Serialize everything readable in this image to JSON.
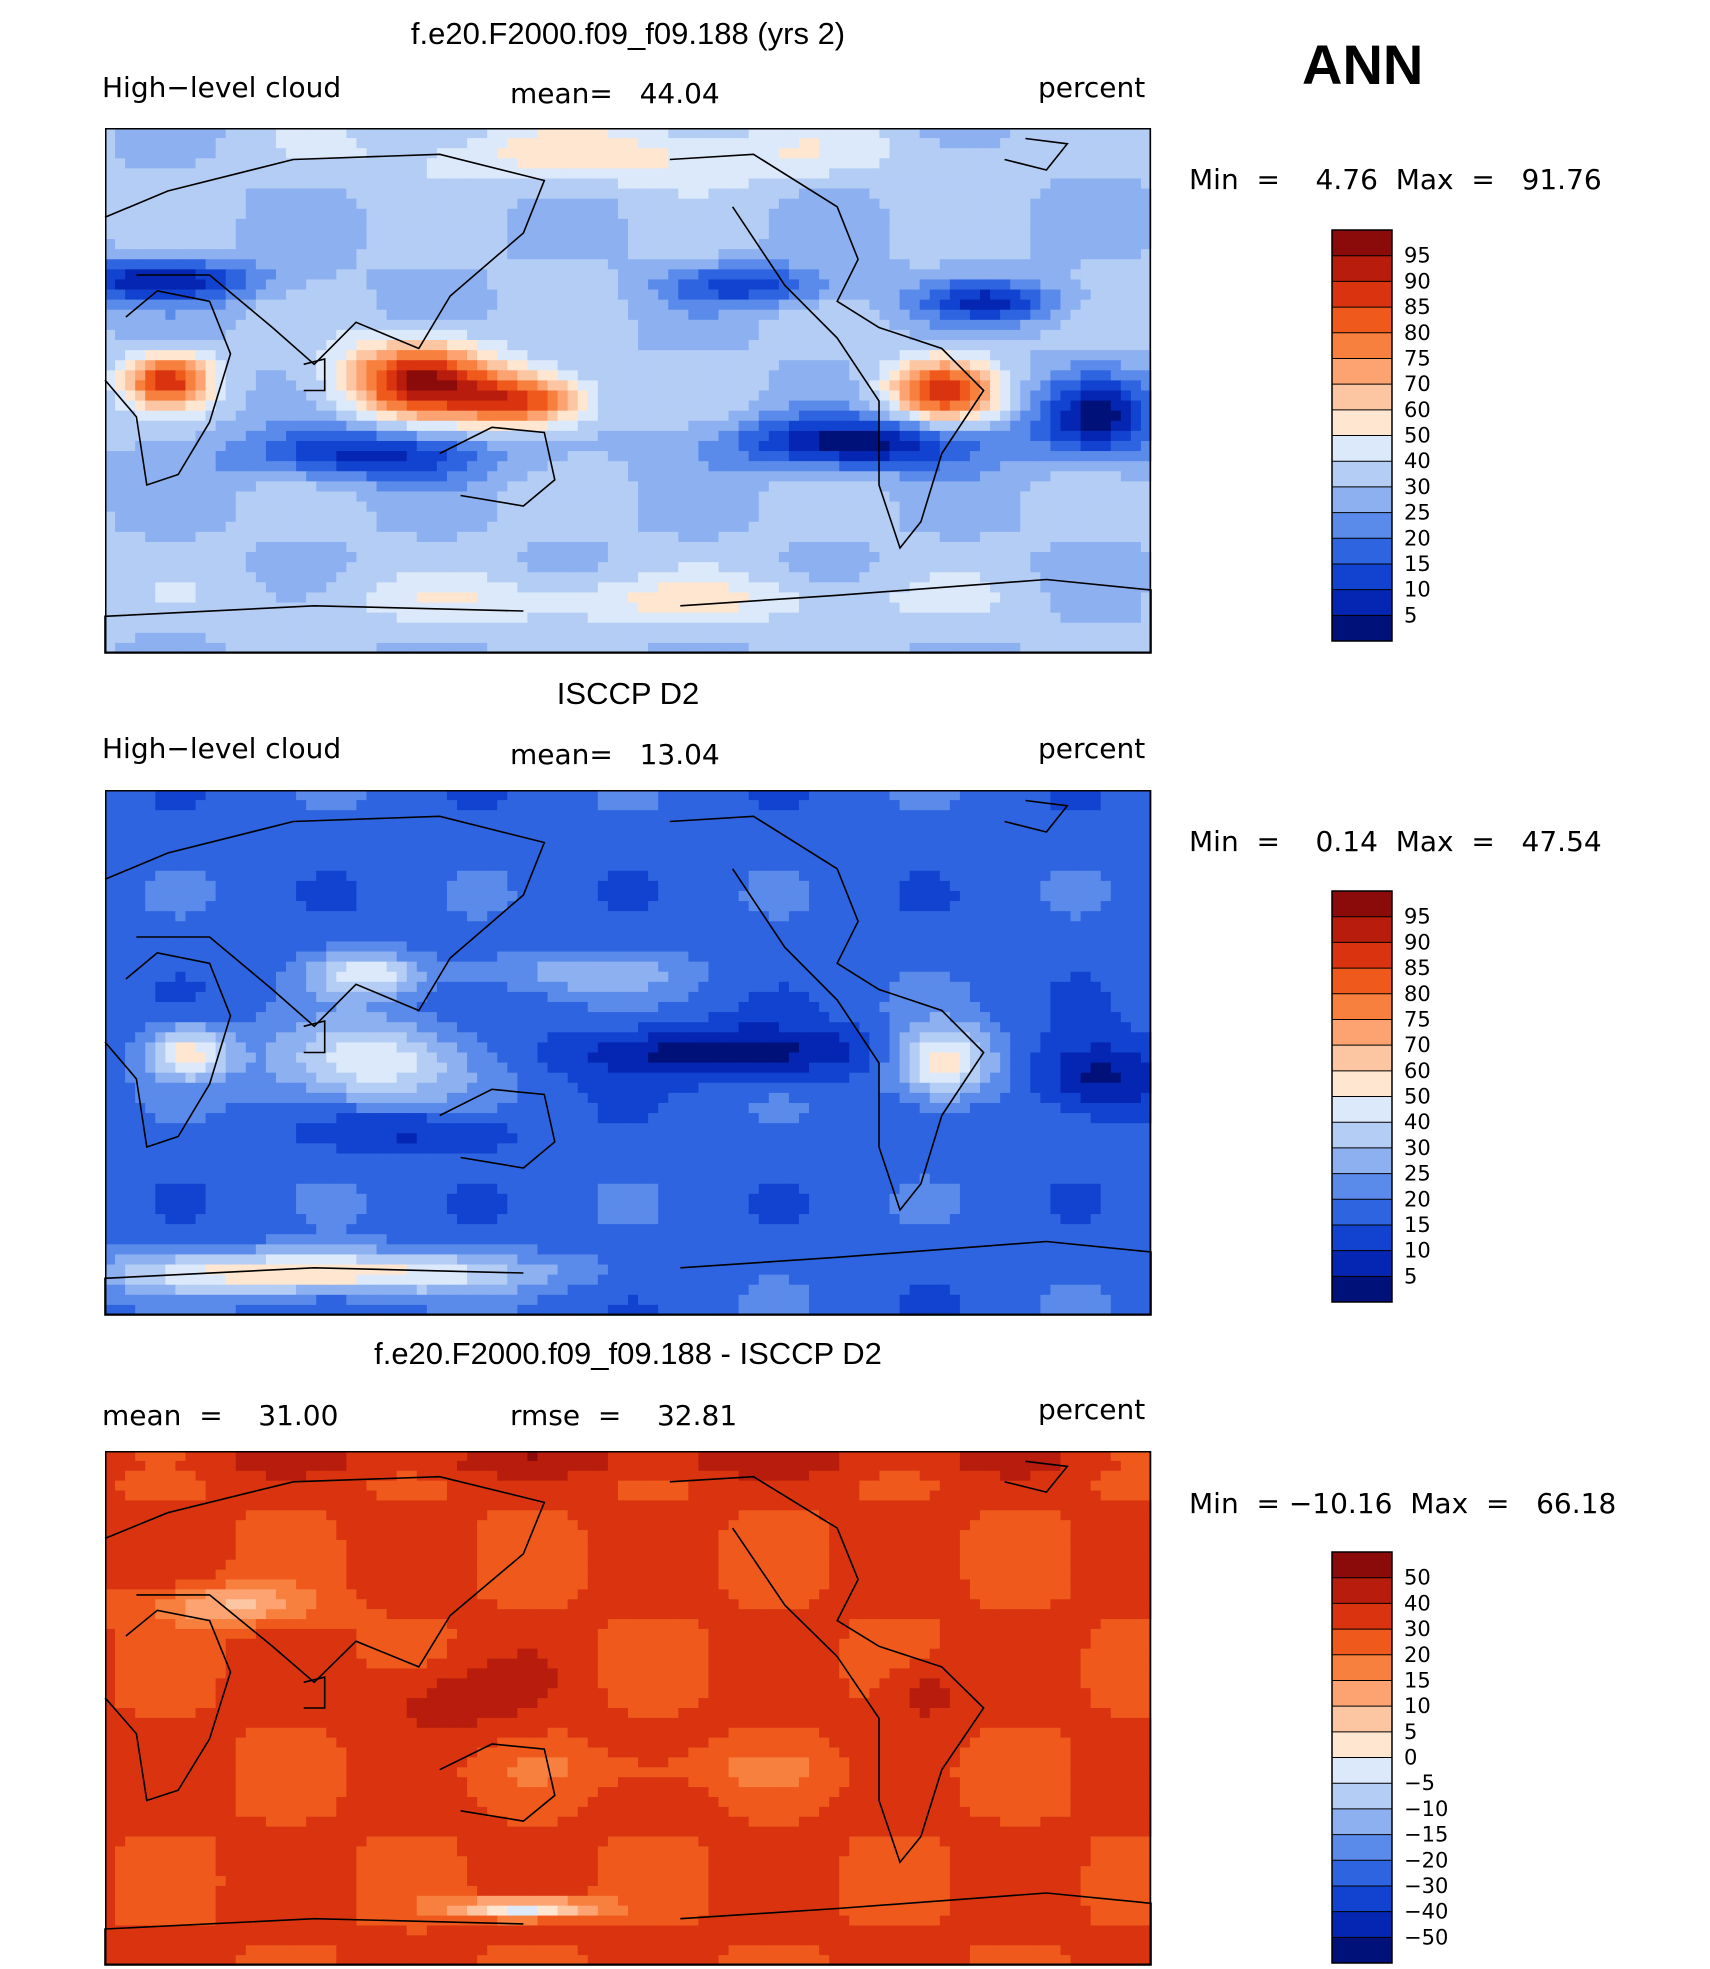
{
  "season": "ANN",
  "panels": [
    {
      "title": "f.e20.F2000.f09_f09.188 (yrs 2)",
      "left_label": "High−level cloud",
      "center_label": "mean=   44.04",
      "right_label": "percent",
      "minmax": "Min  =    4.76  Max  =   91.76",
      "colorbar": {
        "levels": [
          "95",
          "90",
          "85",
          "80",
          "75",
          "70",
          "60",
          "50",
          "40",
          "30",
          "25",
          "20",
          "15",
          "10",
          "5"
        ]
      },
      "field_style": "model"
    },
    {
      "title": "ISCCP D2",
      "left_label": "High−level cloud",
      "center_label": "mean=   13.04",
      "right_label": "percent",
      "minmax": "Min  =    0.14  Max  =   47.54",
      "colorbar": {
        "levels": [
          "95",
          "90",
          "85",
          "80",
          "75",
          "70",
          "60",
          "50",
          "40",
          "30",
          "25",
          "20",
          "15",
          "10",
          "5"
        ]
      },
      "field_style": "obs"
    },
    {
      "title": "f.e20.F2000.f09_f09.188 - ISCCP D2",
      "left_label": "mean  =    31.00",
      "center_label": "rmse  =    32.81",
      "right_label": "percent",
      "minmax": "Min  = −10.16  Max  =   66.18",
      "colorbar": {
        "levels": [
          "50",
          "40",
          "30",
          "20",
          "15",
          "10",
          "5",
          "0",
          "−5",
          "−10",
          "−15",
          "−20",
          "−30",
          "−40",
          "−50"
        ]
      },
      "field_style": "diff"
    }
  ],
  "colors": {
    "palette16": [
      "#8b0a0a",
      "#b71c0c",
      "#d9340f",
      "#ef5a1c",
      "#f7803f",
      "#fca371",
      "#fcc6a3",
      "#fee6d1",
      "#dbe9fa",
      "#b4cdf5",
      "#8cb0f0",
      "#5b8bea",
      "#2e64e0",
      "#1243d0",
      "#0426b3",
      "#00127a"
    ]
  },
  "chart_data": [
    {
      "type": "heatmap",
      "title": "f.e20.F2000.f09_f09.188 (yrs 2)",
      "variable": "High−level cloud",
      "units": "percent",
      "mean": 44.04,
      "min": 4.76,
      "max": 91.76,
      "contour_levels": [
        5,
        10,
        15,
        20,
        25,
        30,
        40,
        50,
        60,
        70,
        75,
        80,
        85,
        90,
        95
      ]
    },
    {
      "type": "heatmap",
      "title": "ISCCP D2",
      "variable": "High−level cloud",
      "units": "percent",
      "mean": 13.04,
      "min": 0.14,
      "max": 47.54,
      "contour_levels": [
        5,
        10,
        15,
        20,
        25,
        30,
        40,
        50,
        60,
        70,
        75,
        80,
        85,
        90,
        95
      ]
    },
    {
      "type": "heatmap",
      "title": "f.e20.F2000.f09_f09.188 - ISCCP D2",
      "units": "percent",
      "mean": 31.0,
      "rmse": 32.81,
      "min": -10.16,
      "max": 66.18,
      "contour_levels": [
        -50,
        -40,
        -30,
        -20,
        -15,
        -10,
        -5,
        0,
        5,
        10,
        15,
        20,
        30,
        40,
        50
      ]
    }
  ]
}
